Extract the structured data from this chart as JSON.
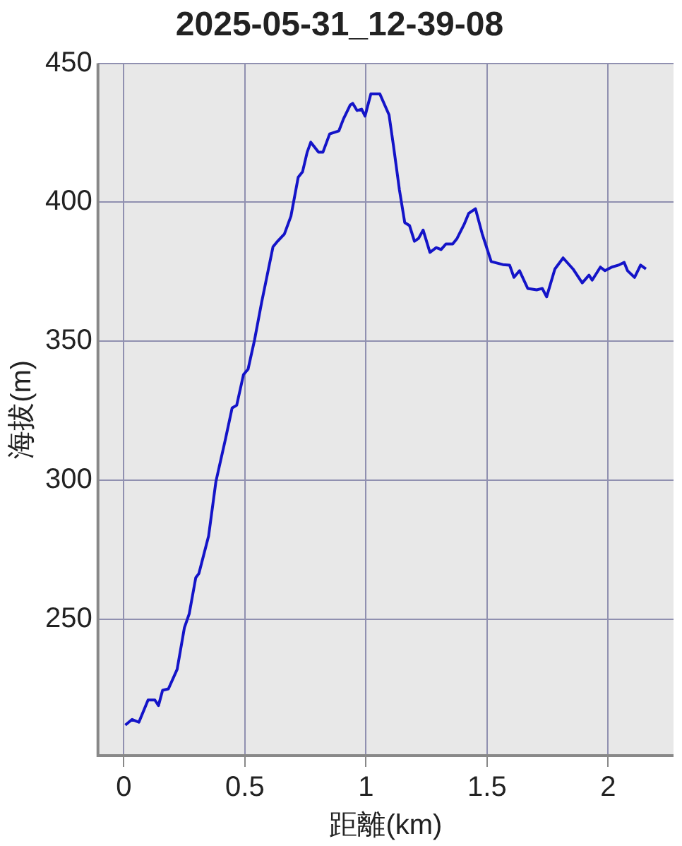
{
  "chart_data": {
    "type": "line",
    "title": "2025-05-31_12-39-08",
    "xlabel": "距離(km)",
    "ylabel": "海拔(m)",
    "x": [
      0.006,
      0.034,
      0.062,
      0.1,
      0.128,
      0.143,
      0.16,
      0.184,
      0.22,
      0.25,
      0.27,
      0.297,
      0.31,
      0.35,
      0.38,
      0.42,
      0.447,
      0.466,
      0.494,
      0.513,
      0.54,
      0.569,
      0.616,
      0.635,
      0.663,
      0.69,
      0.72,
      0.738,
      0.757,
      0.772,
      0.804,
      0.822,
      0.85,
      0.888,
      0.907,
      0.935,
      0.945,
      0.963,
      0.982,
      0.996,
      1.02,
      1.057,
      1.095,
      1.114,
      1.138,
      1.16,
      1.18,
      1.2,
      1.217,
      1.236,
      1.264,
      1.29,
      1.31,
      1.33,
      1.358,
      1.376,
      1.405,
      1.424,
      1.452,
      1.48,
      1.517,
      1.565,
      1.593,
      1.611,
      1.634,
      1.668,
      1.705,
      1.728,
      1.746,
      1.78,
      1.814,
      1.855,
      1.893,
      1.921,
      1.934,
      1.968,
      1.987,
      2.015,
      2.043,
      2.066,
      2.08,
      2.109,
      2.134,
      2.156
    ],
    "series": [
      {
        "color": "#1414c8",
        "values": [
          212,
          214,
          213,
          221,
          221,
          219,
          224.5,
          225,
          232,
          247,
          252,
          265,
          266.5,
          280,
          299.5,
          315,
          326,
          327,
          338,
          340,
          350.6,
          364,
          384,
          386,
          388.6,
          395,
          409,
          411,
          418,
          421.6,
          418,
          418,
          424.6,
          425.7,
          430,
          435,
          435.6,
          433,
          433.5,
          431,
          439,
          439,
          431.5,
          420,
          404.5,
          392.7,
          391.6,
          386,
          387,
          390,
          382,
          383.7,
          383,
          385,
          385,
          387,
          392,
          396,
          397.7,
          388.6,
          378.7,
          377.6,
          377.4,
          373,
          375.4,
          369,
          368.5,
          369,
          366,
          376,
          380,
          376,
          371,
          373.8,
          372,
          376.7,
          375.4,
          376.7,
          377.4,
          378.4,
          375.4,
          373,
          377.4,
          376
        ]
      }
    ],
    "xlim": [
      -0.107,
      2.27
    ],
    "ylim": [
      201,
      450
    ],
    "xticks": [
      0,
      0.5,
      1,
      1.5,
      2
    ],
    "yticks": [
      250,
      300,
      350,
      400,
      450
    ],
    "grid": true,
    "legend": false,
    "marker": "none",
    "line_style": "solid"
  }
}
